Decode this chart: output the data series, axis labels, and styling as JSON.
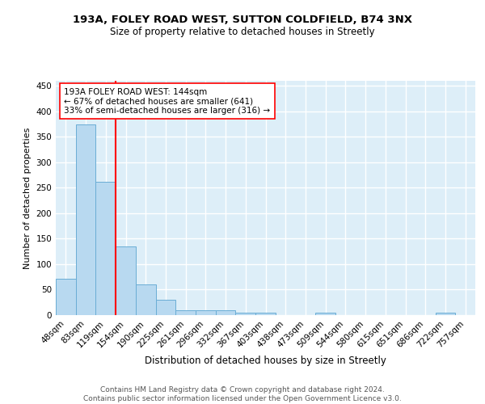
{
  "title_line1": "193A, FOLEY ROAD WEST, SUTTON COLDFIELD, B74 3NX",
  "title_line2": "Size of property relative to detached houses in Streetly",
  "xlabel": "Distribution of detached houses by size in Streetly",
  "ylabel": "Number of detached properties",
  "categories": [
    "48sqm",
    "83sqm",
    "119sqm",
    "154sqm",
    "190sqm",
    "225sqm",
    "261sqm",
    "296sqm",
    "332sqm",
    "367sqm",
    "403sqm",
    "438sqm",
    "473sqm",
    "509sqm",
    "544sqm",
    "580sqm",
    "615sqm",
    "651sqm",
    "686sqm",
    "722sqm",
    "757sqm"
  ],
  "values": [
    72,
    375,
    262,
    135,
    60,
    30,
    10,
    10,
    10,
    5,
    5,
    0,
    0,
    4,
    0,
    0,
    0,
    0,
    0,
    4,
    0
  ],
  "bar_color": "#b8d9f0",
  "bar_edge_color": "#6aadd5",
  "vline_x": 2.5,
  "vline_color": "red",
  "annotation_text": "193A FOLEY ROAD WEST: 144sqm\n← 67% of detached houses are smaller (641)\n33% of semi-detached houses are larger (316) →",
  "annotation_box_color": "white",
  "annotation_box_edge_color": "red",
  "footer_text": "Contains HM Land Registry data © Crown copyright and database right 2024.\nContains public sector information licensed under the Open Government Licence v3.0.",
  "ylim": [
    0,
    460
  ],
  "yticks": [
    0,
    50,
    100,
    150,
    200,
    250,
    300,
    350,
    400,
    450
  ],
  "background_color": "#ddeef8",
  "grid_color": "white",
  "title_fontsize": 9.5,
  "subtitle_fontsize": 8.5,
  "axis_label_fontsize": 8,
  "tick_fontsize": 7.5,
  "footer_fontsize": 6.5,
  "annotation_fontsize": 7.5
}
